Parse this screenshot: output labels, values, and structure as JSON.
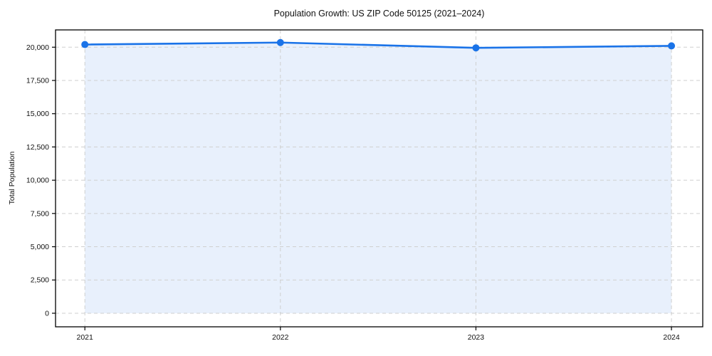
{
  "figure": {
    "background": "#ffffff",
    "frame_color": "#000000",
    "grid_color": "#cfcfcf"
  },
  "chart_data": {
    "type": "line",
    "title": "Population Growth: US ZIP Code 50125 (2021–2024)",
    "xlabel": "",
    "ylabel": "Total Population",
    "x": [
      2021,
      2022,
      2023,
      2024
    ],
    "xtick_labels": [
      "2021",
      "2022",
      "2023",
      "2024"
    ],
    "series": [
      {
        "name": "Total Population",
        "values": [
          20200,
          20350,
          19950,
          20100
        ]
      }
    ],
    "yticks": [
      {
        "value": 0,
        "label": "0"
      },
      {
        "value": 2500,
        "label": "2,500"
      },
      {
        "value": 5000,
        "label": "5,000"
      },
      {
        "value": 7500,
        "label": "7,500"
      },
      {
        "value": 10000,
        "label": "10,000"
      },
      {
        "value": 12500,
        "label": "12,500"
      },
      {
        "value": 15000,
        "label": "15,000"
      },
      {
        "value": 17500,
        "label": "17,500"
      },
      {
        "value": 20000,
        "label": "20,000"
      }
    ],
    "ylim": [
      -1020,
      21300
    ],
    "xlim": [
      2020.85,
      2024.16
    ],
    "grid": true,
    "legend": "none",
    "area_fill": true,
    "line_color": "#1a73e8",
    "fill_color": "#e8f0fc",
    "marker": "circle"
  }
}
